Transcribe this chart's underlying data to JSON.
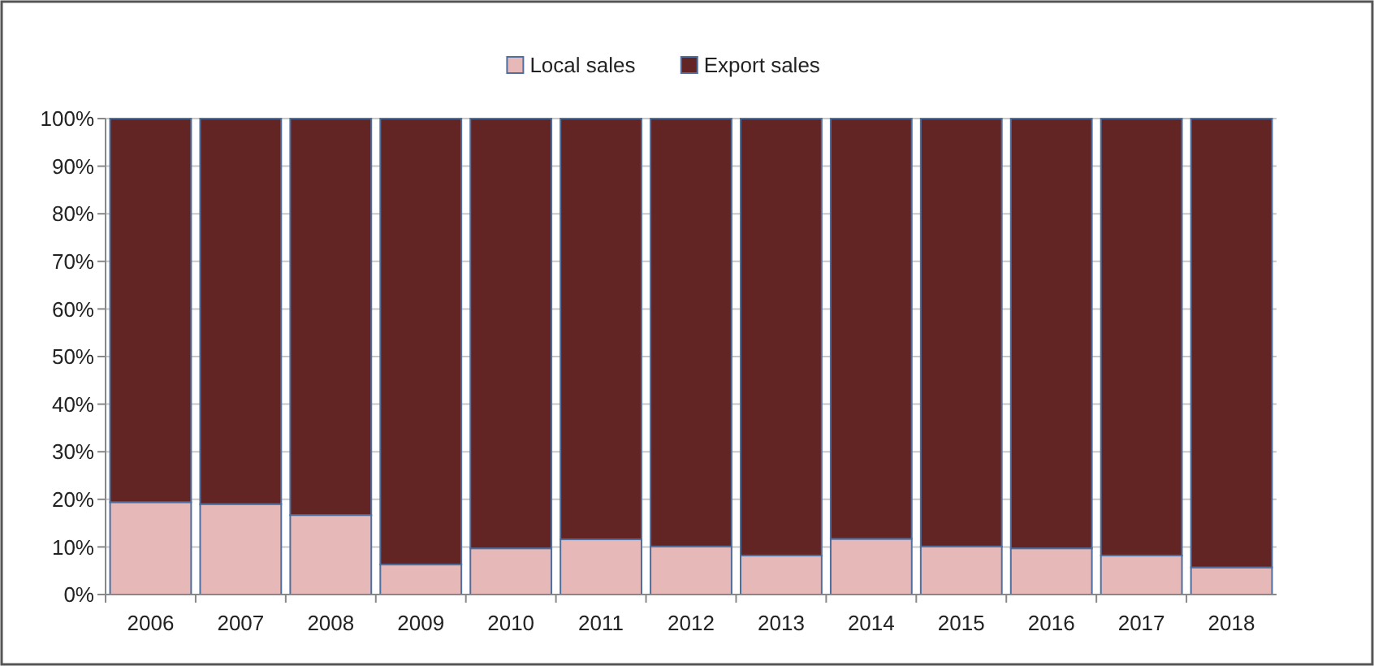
{
  "chart_data": {
    "type": "bar",
    "stacked": true,
    "categories": [
      "2006",
      "2007",
      "2008",
      "2009",
      "2010",
      "2011",
      "2012",
      "2013",
      "2014",
      "2015",
      "2016",
      "2017",
      "2018"
    ],
    "series": [
      {
        "name": "Local sales",
        "color": "#e6b8b7",
        "values": [
          19.4,
          19.0,
          16.7,
          6.3,
          9.7,
          11.6,
          10.1,
          8.2,
          11.7,
          10.1,
          9.7,
          8.2,
          5.7
        ]
      },
      {
        "name": "Export sales",
        "color": "#632523",
        "values": [
          80.6,
          81.0,
          83.3,
          93.7,
          90.3,
          88.4,
          89.9,
          91.8,
          88.3,
          89.9,
          90.3,
          91.8,
          94.3
        ]
      }
    ],
    "ylim": [
      0,
      100
    ],
    "yticks": [
      {
        "value": 0,
        "label": "0%"
      },
      {
        "value": 10,
        "label": "10%"
      },
      {
        "value": 20,
        "label": "20%"
      },
      {
        "value": 30,
        "label": "30%"
      },
      {
        "value": 40,
        "label": "40%"
      },
      {
        "value": 50,
        "label": "50%"
      },
      {
        "value": 60,
        "label": "60%"
      },
      {
        "value": 70,
        "label": "70%"
      },
      {
        "value": 80,
        "label": "80%"
      },
      {
        "value": 90,
        "label": "90%"
      },
      {
        "value": 100,
        "label": "100%"
      }
    ],
    "grid": "y",
    "legend": "top"
  }
}
